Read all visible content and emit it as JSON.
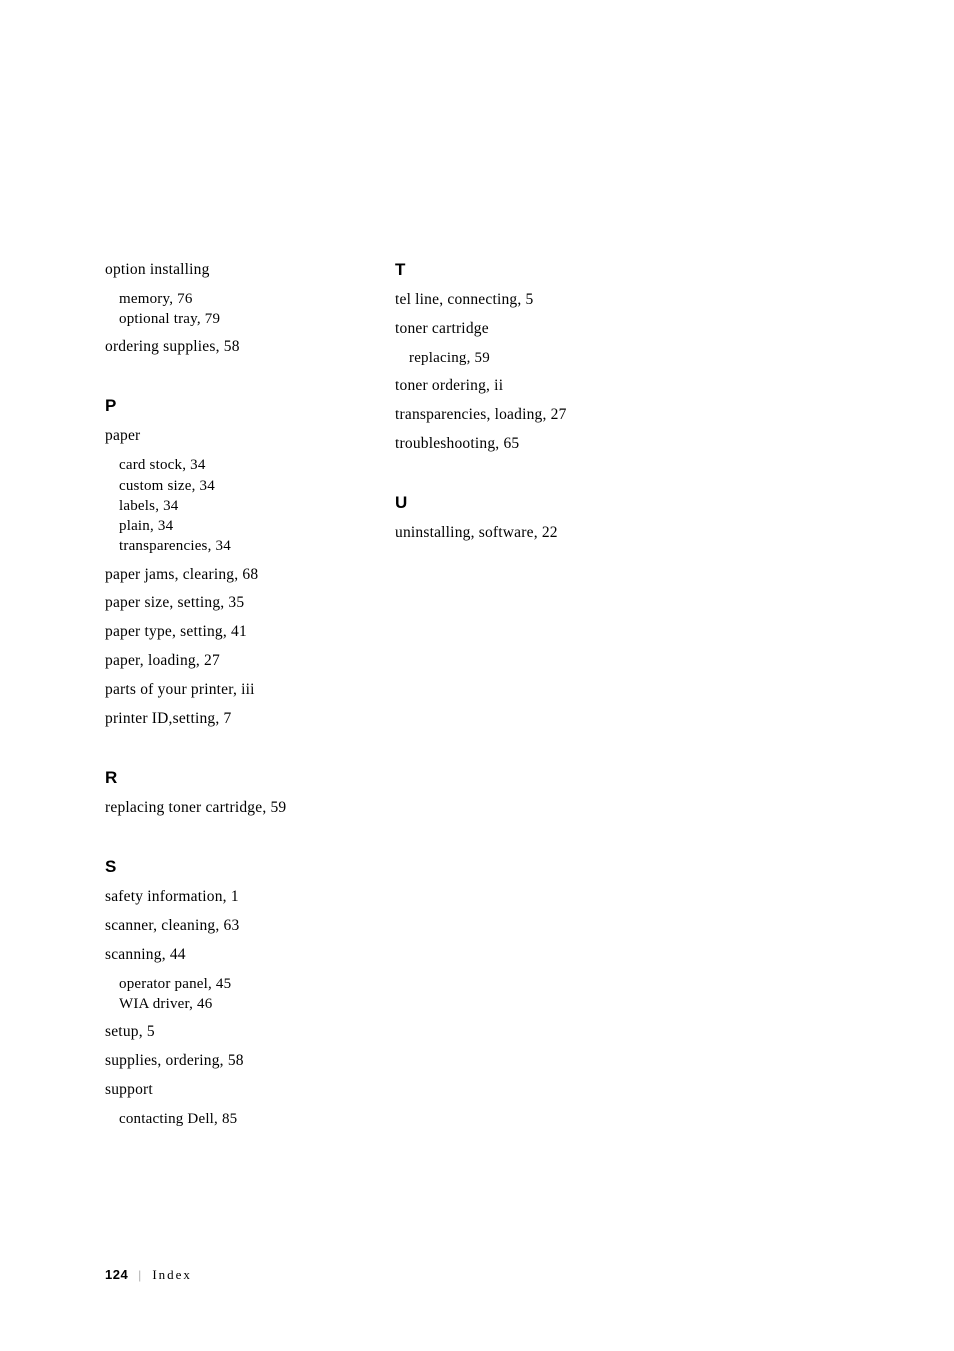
{
  "left_column": {
    "pre_entries": [
      {
        "text": "option installing",
        "subs": [
          {
            "text": "memory, 76"
          },
          {
            "text": "optional tray, 79"
          }
        ]
      },
      {
        "text": "ordering supplies, 58"
      }
    ],
    "sections": [
      {
        "heading": "P",
        "entries": [
          {
            "text": "paper",
            "subs": [
              {
                "text": "card stock, 34"
              },
              {
                "text": "custom size, 34"
              },
              {
                "text": "labels, 34"
              },
              {
                "text": "plain, 34"
              },
              {
                "text": "transparencies, 34"
              }
            ]
          },
          {
            "text": "paper jams, clearing, 68"
          },
          {
            "text": "paper size, setting, 35"
          },
          {
            "text": "paper type, setting, 41"
          },
          {
            "text": "paper, loading, 27"
          },
          {
            "text": "parts of your printer, iii"
          },
          {
            "text": "printer ID,setting, 7"
          }
        ]
      },
      {
        "heading": "R",
        "entries": [
          {
            "text": "replacing toner cartridge, 59"
          }
        ]
      },
      {
        "heading": "S",
        "entries": [
          {
            "text": "safety information, 1"
          },
          {
            "text": "scanner, cleaning, 63"
          },
          {
            "text": "scanning, 44",
            "subs": [
              {
                "text": "operator panel, 45"
              },
              {
                "text": "WIA driver, 46"
              }
            ]
          },
          {
            "text": "setup, 5"
          },
          {
            "text": "supplies, ordering, 58"
          },
          {
            "text": "support",
            "subs": [
              {
                "text": "contacting Dell, 85"
              }
            ]
          }
        ]
      }
    ]
  },
  "right_column": {
    "sections": [
      {
        "heading": "T",
        "entries": [
          {
            "text": "tel line, connecting, 5"
          },
          {
            "text": "toner cartridge",
            "subs": [
              {
                "text": "replacing, 59"
              }
            ]
          },
          {
            "text": "toner ordering, ii"
          },
          {
            "text": "transparencies, loading, 27"
          },
          {
            "text": "troubleshooting, 65"
          }
        ]
      },
      {
        "heading": "U",
        "entries": [
          {
            "text": "uninstalling, software, 22"
          }
        ]
      }
    ]
  },
  "footer": {
    "page_number": "124",
    "separator": "|",
    "label": "Index"
  }
}
